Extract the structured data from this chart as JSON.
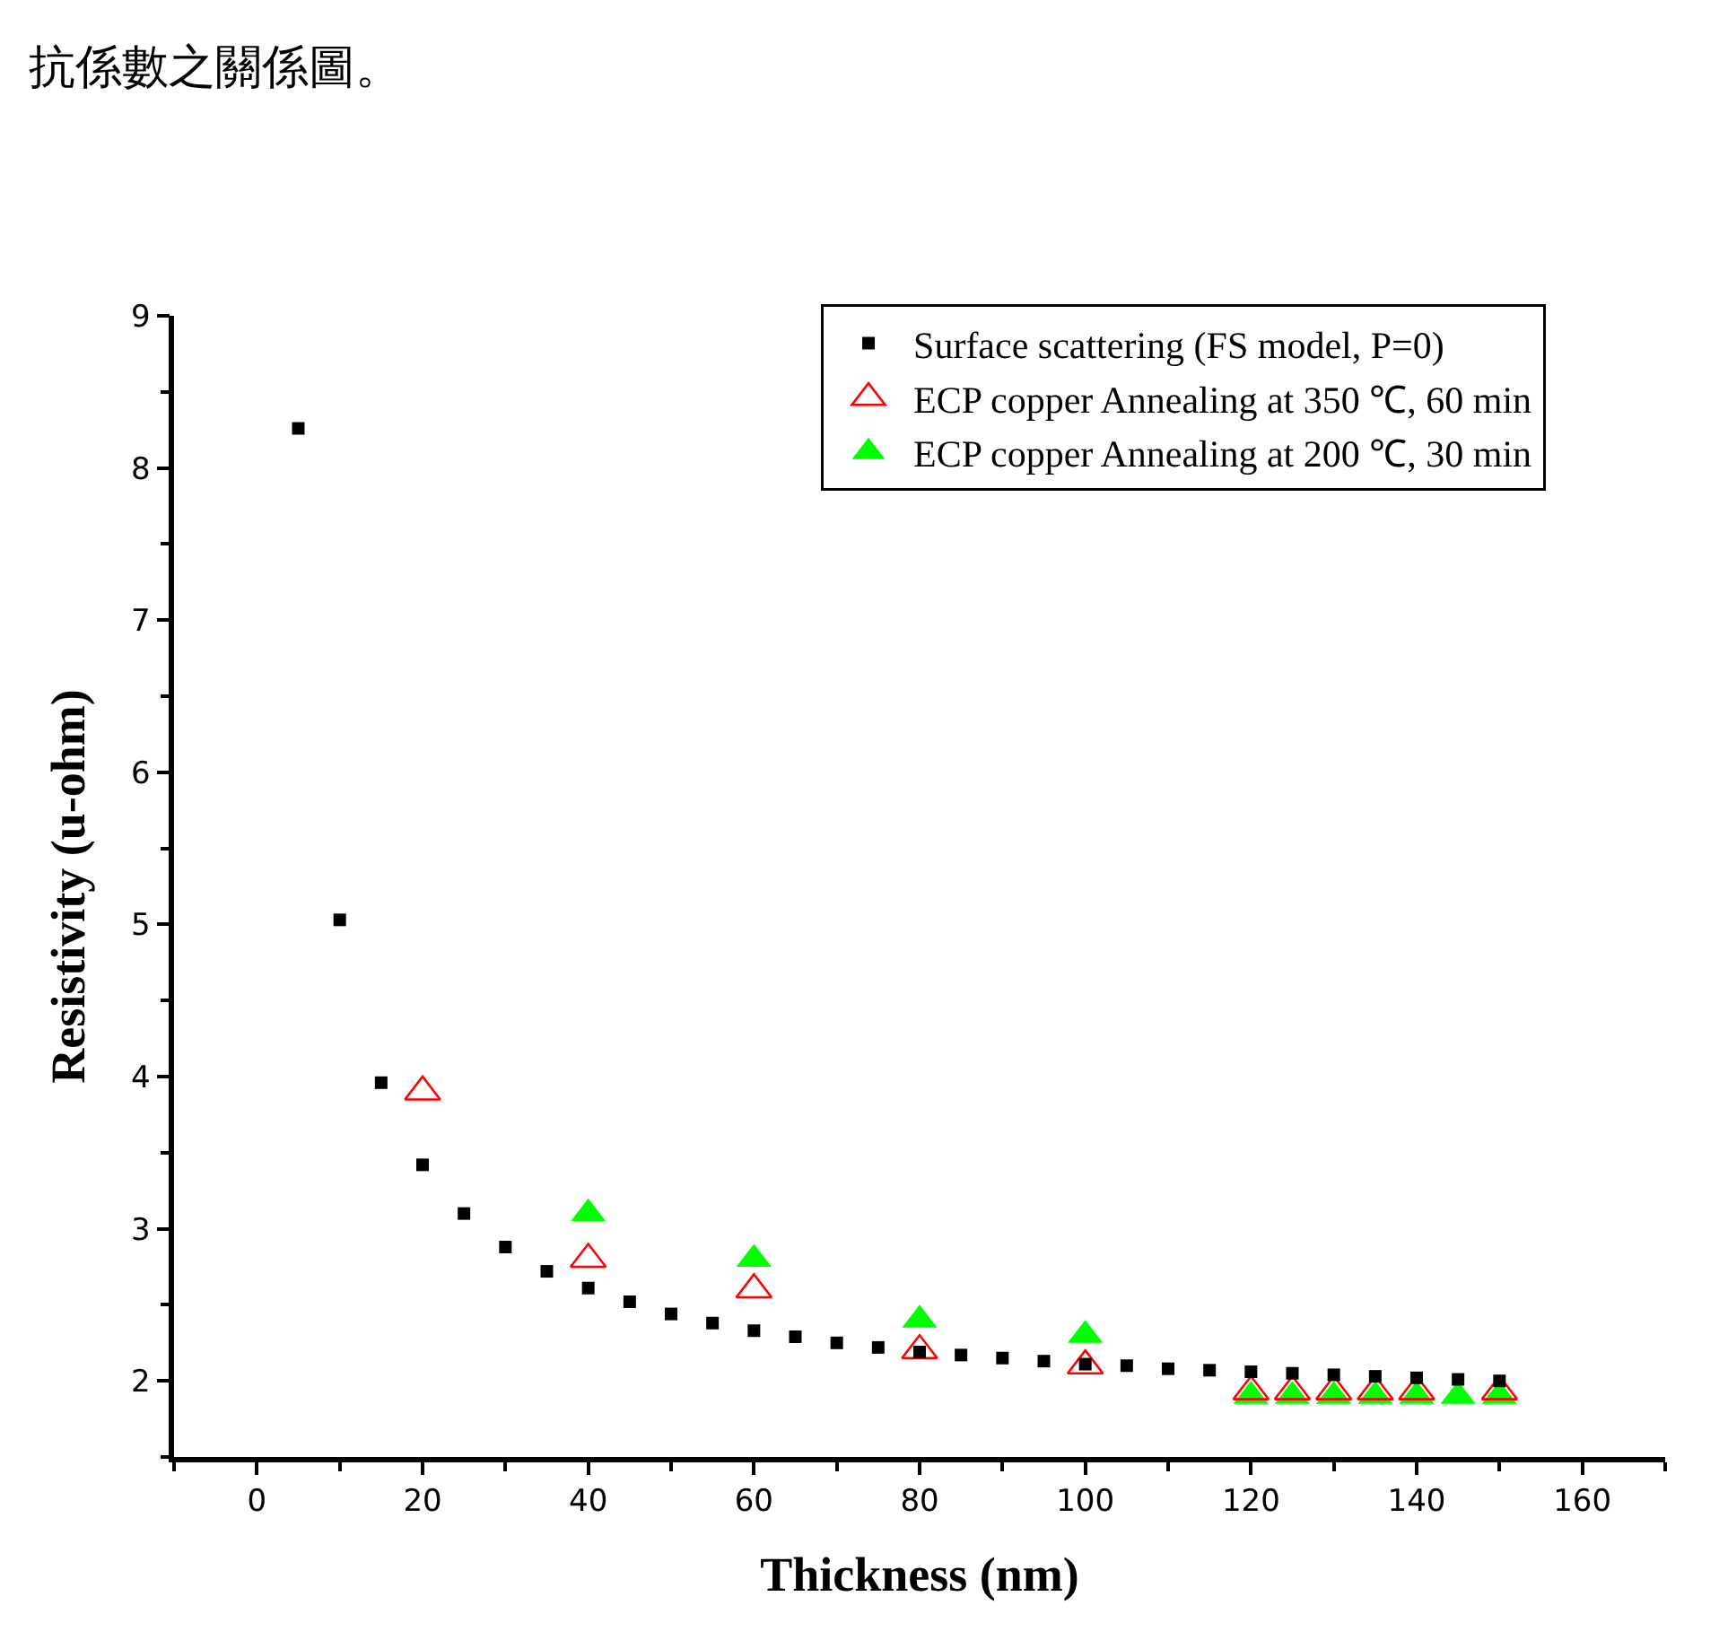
{
  "chart_data": {
    "type": "scatter",
    "xlabel": "Thickness (nm)",
    "ylabel": "Resistivity (u-ohm)",
    "annotations": [
      "抗係數之關係圖。"
    ],
    "xlim": [
      -10,
      170
    ],
    "xticks": [
      0,
      20,
      40,
      60,
      80,
      100,
      120,
      140,
      160
    ],
    "ylim": [
      1.5,
      9
    ],
    "yticks": [
      2,
      3,
      4,
      5,
      6,
      7,
      8,
      9
    ],
    "legend": "top right",
    "series": [
      {
        "name": "Surface scattering (FS model, P=0)",
        "color": "#000000",
        "marker": "square",
        "x": [
          5,
          10,
          15,
          20,
          25,
          30,
          35,
          40,
          45,
          50,
          55,
          60,
          65,
          70,
          75,
          80,
          85,
          90,
          95,
          100,
          105,
          110,
          115,
          120,
          125,
          130,
          135,
          140,
          145,
          150
        ],
        "values": [
          8.26,
          5.03,
          3.96,
          3.42,
          3.1,
          2.88,
          2.72,
          2.61,
          2.52,
          2.44,
          2.38,
          2.33,
          2.29,
          2.25,
          2.22,
          2.19,
          2.17,
          2.15,
          2.13,
          2.11,
          2.1,
          2.08,
          2.07,
          2.06,
          2.05,
          2.04,
          2.03,
          2.02,
          2.01,
          2.0
        ]
      },
      {
        "name": "ECP copper Annealing at 350 ℃, 60 min",
        "color": "#ff0000",
        "marker": "triangle-open",
        "x": [
          20,
          40,
          60,
          80,
          100,
          120,
          125,
          130,
          135,
          140,
          150
        ],
        "values": [
          3.9,
          2.8,
          2.6,
          2.2,
          2.1,
          1.93,
          1.93,
          1.93,
          1.93,
          1.93,
          1.93
        ]
      },
      {
        "name": "ECP copper Annealing at 200 ℃, 30 min",
        "color": "#00ff00",
        "marker": "triangle",
        "x": [
          40,
          60,
          80,
          100,
          120,
          125,
          130,
          135,
          140,
          145,
          150
        ],
        "values": [
          3.1,
          2.8,
          2.4,
          2.3,
          1.9,
          1.9,
          1.9,
          1.9,
          1.9,
          1.9,
          1.9
        ]
      }
    ]
  }
}
